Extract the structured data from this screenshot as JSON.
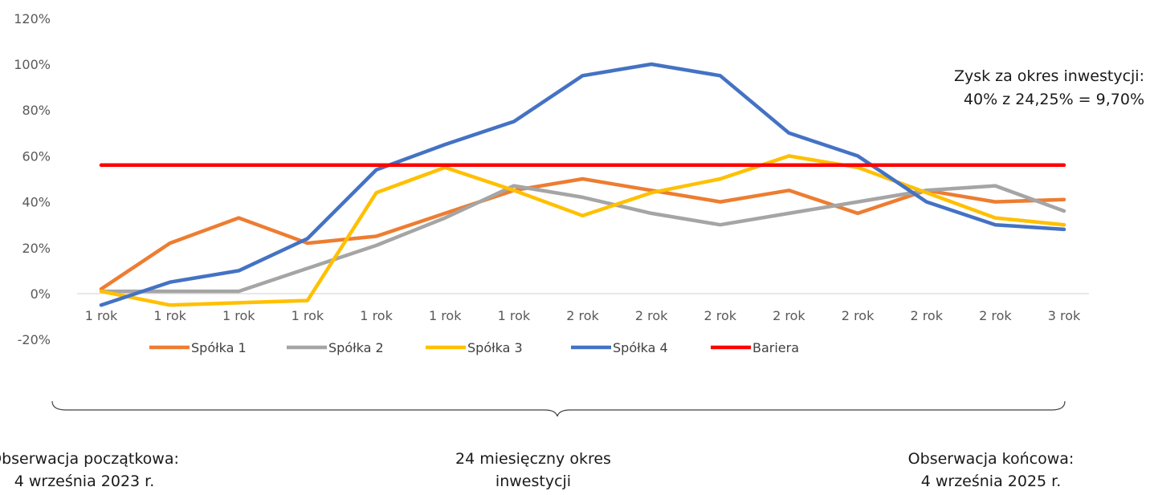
{
  "chart_data": {
    "type": "line",
    "categories": [
      "1 rok",
      "1 rok",
      "1 rok",
      "1 rok",
      "1 rok",
      "1 rok",
      "1 rok",
      "2 rok",
      "2 rok",
      "2 rok",
      "2 rok",
      "2 rok",
      "2 rok",
      "2 rok",
      "3 rok"
    ],
    "y_ticks": [
      "-20%",
      "0%",
      "20%",
      "40%",
      "60%",
      "80%",
      "100%",
      "120%"
    ],
    "ylim": [
      -20,
      120
    ],
    "grid": false,
    "legend_position": "bottom",
    "series": [
      {
        "name": "Spółka 1",
        "color": "#ED7D31",
        "values": [
          2,
          22,
          33,
          22,
          25,
          35,
          45,
          50,
          45,
          40,
          45,
          35,
          45,
          40,
          41
        ]
      },
      {
        "name": "Spółka 2",
        "color": "#A5A5A5",
        "values": [
          1,
          1,
          1,
          11,
          21,
          33,
          47,
          42,
          35,
          30,
          35,
          40,
          45,
          47,
          36
        ]
      },
      {
        "name": "Spółka 3",
        "color": "#FFC000",
        "values": [
          1,
          -5,
          -4,
          -3,
          44,
          55,
          45,
          34,
          44,
          50,
          60,
          55,
          44,
          33,
          30
        ]
      },
      {
        "name": "Spółka 4",
        "color": "#4472C4",
        "values": [
          -5,
          5,
          10,
          24,
          54,
          65,
          75,
          95,
          100,
          95,
          70,
          60,
          40,
          30,
          28
        ]
      },
      {
        "name": "Bariera",
        "color": "#FF0000",
        "values": [
          56,
          56,
          56,
          56,
          56,
          56,
          56,
          56,
          56,
          56,
          56,
          56,
          56,
          56,
          56
        ]
      }
    ],
    "annotations": {
      "gain_line1": "Zysk za okres inwestycji:",
      "gain_line2": "40% z 24,25% = 9,70%",
      "start_line1": "Obserwacja  początkowa:",
      "start_line2": "4 września  2023  r.",
      "middle_line1": "24 miesięczny okres",
      "middle_line2": "inwestycji",
      "end_line1": "Obserwacja  końcowa:",
      "end_line2": "4 września  2025  r."
    }
  }
}
